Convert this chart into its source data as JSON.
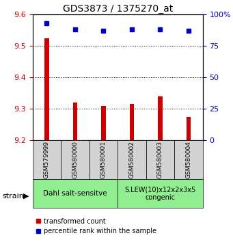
{
  "title": "GDS3873 / 1375270_at",
  "samples": [
    "GSM579999",
    "GSM580000",
    "GSM580001",
    "GSM580002",
    "GSM580003",
    "GSM580004"
  ],
  "red_values": [
    9.525,
    9.32,
    9.31,
    9.315,
    9.34,
    9.275
  ],
  "blue_values": [
    93,
    88,
    87,
    88,
    88,
    87
  ],
  "ylim_left": [
    9.2,
    9.6
  ],
  "ylim_right": [
    0,
    100
  ],
  "yticks_left": [
    9.2,
    9.3,
    9.4,
    9.5,
    9.6
  ],
  "yticks_right": [
    0,
    25,
    50,
    75,
    100
  ],
  "group1_label": "Dahl salt-sensitve",
  "group2_label": "S.LEW(10)x12x2x3x5\ncongenic",
  "group1_indices": [
    0,
    1,
    2
  ],
  "group2_indices": [
    3,
    4,
    5
  ],
  "group_bg_color": "#90EE90",
  "sample_bg_color": "#D3D3D3",
  "bar_base": 9.2,
  "bar_color": "#CC0000",
  "dot_color": "#0000CC",
  "legend_red_label": "transformed count",
  "legend_blue_label": "percentile rank within the sample",
  "strain_label": "strain",
  "right_axis_color": "#0000CC",
  "left_axis_color": "#CC0000",
  "bar_width": 0.15
}
